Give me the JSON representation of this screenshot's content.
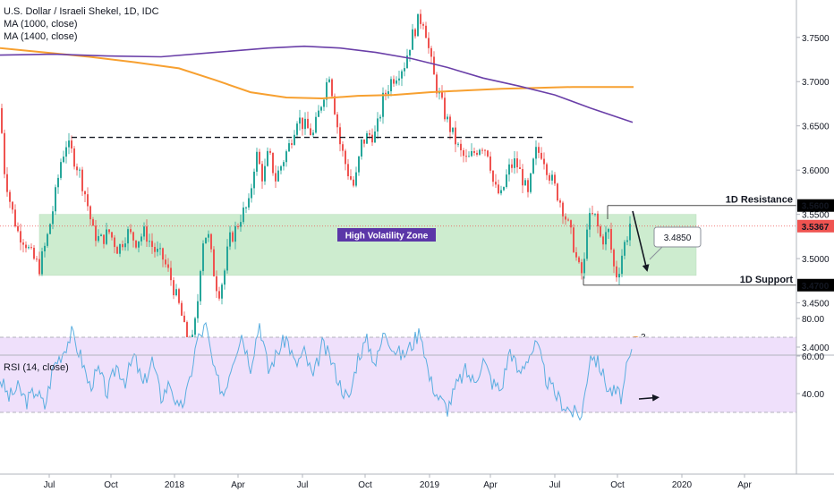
{
  "legend": {
    "title": "U.S. Dollar / Israeli Shekel, 1D, IDC",
    "ma1": "MA (1000, close)",
    "ma2": "MA (1400, close)",
    "rsi": "RSI (14, close)"
  },
  "colors": {
    "up": "#26a69a",
    "down": "#ef5350",
    "ma1000": "#f7a030",
    "ma1400": "#6a3fa8",
    "zone": "#cdeccf",
    "rsi_line": "#5aaee0",
    "rsi_band": "#efe0fb",
    "accent_label": "#5b36a8"
  },
  "chart_data": [
    {
      "type": "candlestick",
      "title": "U.S. Dollar / Israeli Shekel, 1D, IDC",
      "ylim": [
        3.37,
        3.785
      ],
      "y_ticks": [
        "3.7500",
        "3.7000",
        "3.6500",
        "3.6000",
        "3.5500",
        "3.5000",
        "3.4500",
        "3.4000"
      ],
      "x_ticks": [
        "Jul",
        "Oct",
        "2018",
        "Apr",
        "Jul",
        "Oct",
        "2019",
        "Apr",
        "Jul",
        "Oct",
        "2020",
        "Apr"
      ],
      "price_path": [
        [
          0,
          3.67
        ],
        [
          5,
          3.6
        ],
        [
          12,
          3.56
        ],
        [
          20,
          3.53
        ],
        [
          28,
          3.52
        ],
        [
          34,
          3.505
        ],
        [
          44,
          3.49
        ],
        [
          52,
          3.52
        ],
        [
          60,
          3.56
        ],
        [
          68,
          3.61
        ],
        [
          74,
          3.63
        ],
        [
          80,
          3.62
        ],
        [
          88,
          3.6
        ],
        [
          96,
          3.57
        ],
        [
          104,
          3.53
        ],
        [
          112,
          3.52
        ],
        [
          122,
          3.53
        ],
        [
          132,
          3.51
        ],
        [
          142,
          3.53
        ],
        [
          152,
          3.52
        ],
        [
          162,
          3.53
        ],
        [
          172,
          3.51
        ],
        [
          182,
          3.5
        ],
        [
          190,
          3.48
        ],
        [
          196,
          3.46
        ],
        [
          202,
          3.44
        ],
        [
          208,
          3.41
        ],
        [
          214,
          3.4
        ],
        [
          220,
          3.44
        ],
        [
          226,
          3.52
        ],
        [
          232,
          3.53
        ],
        [
          238,
          3.49
        ],
        [
          244,
          3.46
        ],
        [
          250,
          3.48
        ],
        [
          256,
          3.52
        ],
        [
          262,
          3.53
        ],
        [
          270,
          3.55
        ],
        [
          278,
          3.56
        ],
        [
          286,
          3.62
        ],
        [
          294,
          3.59
        ],
        [
          300,
          3.62
        ],
        [
          308,
          3.59
        ],
        [
          316,
          3.61
        ],
        [
          324,
          3.63
        ],
        [
          332,
          3.66
        ],
        [
          340,
          3.65
        ],
        [
          350,
          3.64
        ],
        [
          360,
          3.68
        ],
        [
          368,
          3.71
        ],
        [
          374,
          3.67
        ],
        [
          380,
          3.63
        ],
        [
          388,
          3.6
        ],
        [
          396,
          3.58
        ],
        [
          404,
          3.63
        ],
        [
          412,
          3.64
        ],
        [
          420,
          3.64
        ],
        [
          428,
          3.68
        ],
        [
          436,
          3.7
        ],
        [
          444,
          3.71
        ],
        [
          452,
          3.72
        ],
        [
          460,
          3.75
        ],
        [
          468,
          3.77
        ],
        [
          474,
          3.77
        ],
        [
          480,
          3.73
        ],
        [
          486,
          3.7
        ],
        [
          492,
          3.68
        ],
        [
          498,
          3.66
        ],
        [
          506,
          3.64
        ],
        [
          514,
          3.62
        ],
        [
          522,
          3.61
        ],
        [
          530,
          3.62
        ],
        [
          538,
          3.63
        ],
        [
          546,
          3.62
        ],
        [
          552,
          3.58
        ],
        [
          560,
          3.57
        ],
        [
          568,
          3.6
        ],
        [
          576,
          3.61
        ],
        [
          584,
          3.59
        ],
        [
          590,
          3.57
        ],
        [
          598,
          3.62
        ],
        [
          606,
          3.62
        ],
        [
          612,
          3.6
        ],
        [
          620,
          3.58
        ],
        [
          628,
          3.56
        ],
        [
          634,
          3.54
        ],
        [
          640,
          3.52
        ],
        [
          646,
          3.49
        ],
        [
          652,
          3.48
        ],
        [
          656,
          3.54
        ],
        [
          664,
          3.55
        ],
        [
          672,
          3.52
        ],
        [
          680,
          3.53
        ],
        [
          686,
          3.49
        ],
        [
          690,
          3.48
        ],
        [
          696,
          3.51
        ],
        [
          702,
          3.53
        ],
        [
          705,
          3.545
        ]
      ],
      "ma1000": [
        [
          0,
          3.738
        ],
        [
          50,
          3.733
        ],
        [
          100,
          3.728
        ],
        [
          150,
          3.722
        ],
        [
          200,
          3.715
        ],
        [
          240,
          3.702
        ],
        [
          280,
          3.688
        ],
        [
          320,
          3.682
        ],
        [
          360,
          3.681
        ],
        [
          400,
          3.684
        ],
        [
          440,
          3.685
        ],
        [
          480,
          3.688
        ],
        [
          520,
          3.69
        ],
        [
          560,
          3.692
        ],
        [
          600,
          3.693
        ],
        [
          640,
          3.694
        ],
        [
          680,
          3.694
        ],
        [
          708,
          3.694
        ]
      ],
      "ma1400": [
        [
          0,
          3.73
        ],
        [
          60,
          3.731
        ],
        [
          120,
          3.729
        ],
        [
          180,
          3.728
        ],
        [
          240,
          3.733
        ],
        [
          300,
          3.738
        ],
        [
          340,
          3.74
        ],
        [
          380,
          3.738
        ],
        [
          420,
          3.733
        ],
        [
          460,
          3.726
        ],
        [
          500,
          3.716
        ],
        [
          540,
          3.704
        ],
        [
          580,
          3.695
        ],
        [
          620,
          3.685
        ],
        [
          660,
          3.67
        ],
        [
          707,
          3.654
        ]
      ],
      "resistance": 3.56,
      "support": 3.47,
      "last_price": 3.5367,
      "target_value": 3.485,
      "zone": [
        3.481,
        3.55
      ],
      "top_dashed": 3.637,
      "labels": {
        "resistance": "1D Resistance",
        "support": "1D Support",
        "zone": "High Volatility Zone",
        "target": "3.4850",
        "resistance_badge": "3.5600",
        "support_badge": "3.4700",
        "last_badge": "3.5367"
      }
    },
    {
      "type": "line",
      "title": "RSI (14, close)",
      "ylim": [
        24,
        82
      ],
      "y_ticks": [
        "80.00",
        "60.00",
        "40.00"
      ],
      "band": [
        30,
        70
      ],
      "rsi_path": [
        [
          0,
          48
        ],
        [
          10,
          38
        ],
        [
          20,
          43
        ],
        [
          30,
          36
        ],
        [
          40,
          42
        ],
        [
          50,
          33
        ],
        [
          60,
          55
        ],
        [
          70,
          62
        ],
        [
          80,
          72
        ],
        [
          90,
          60
        ],
        [
          100,
          44
        ],
        [
          110,
          52
        ],
        [
          120,
          40
        ],
        [
          130,
          55
        ],
        [
          140,
          47
        ],
        [
          150,
          60
        ],
        [
          160,
          44
        ],
        [
          170,
          58
        ],
        [
          180,
          38
        ],
        [
          190,
          46
        ],
        [
          200,
          30
        ],
        [
          210,
          42
        ],
        [
          220,
          68
        ],
        [
          230,
          76
        ],
        [
          240,
          50
        ],
        [
          250,
          40
        ],
        [
          260,
          58
        ],
        [
          270,
          72
        ],
        [
          280,
          55
        ],
        [
          290,
          78
        ],
        [
          300,
          52
        ],
        [
          310,
          62
        ],
        [
          320,
          70
        ],
        [
          330,
          55
        ],
        [
          340,
          62
        ],
        [
          350,
          48
        ],
        [
          360,
          66
        ],
        [
          370,
          58
        ],
        [
          380,
          45
        ],
        [
          390,
          36
        ],
        [
          400,
          60
        ],
        [
          410,
          68
        ],
        [
          420,
          56
        ],
        [
          430,
          74
        ],
        [
          440,
          64
        ],
        [
          450,
          60
        ],
        [
          460,
          66
        ],
        [
          470,
          74
        ],
        [
          480,
          48
        ],
        [
          490,
          38
        ],
        [
          500,
          32
        ],
        [
          510,
          44
        ],
        [
          520,
          52
        ],
        [
          530,
          46
        ],
        [
          540,
          58
        ],
        [
          550,
          46
        ],
        [
          560,
          42
        ],
        [
          570,
          64
        ],
        [
          580,
          50
        ],
        [
          590,
          60
        ],
        [
          600,
          66
        ],
        [
          610,
          48
        ],
        [
          620,
          40
        ],
        [
          630,
          34
        ],
        [
          640,
          30
        ],
        [
          650,
          28
        ],
        [
          660,
          62
        ],
        [
          670,
          55
        ],
        [
          680,
          42
        ],
        [
          690,
          40
        ],
        [
          695,
          38
        ],
        [
          700,
          52
        ],
        [
          707,
          64
        ]
      ],
      "arrow_to": 37
    }
  ],
  "x_ticks": [
    "Jul",
    "Oct",
    "2018",
    "Apr",
    "Jul",
    "Oct",
    "2019",
    "Apr",
    "Jul",
    "Oct",
    "2020",
    "Apr"
  ]
}
